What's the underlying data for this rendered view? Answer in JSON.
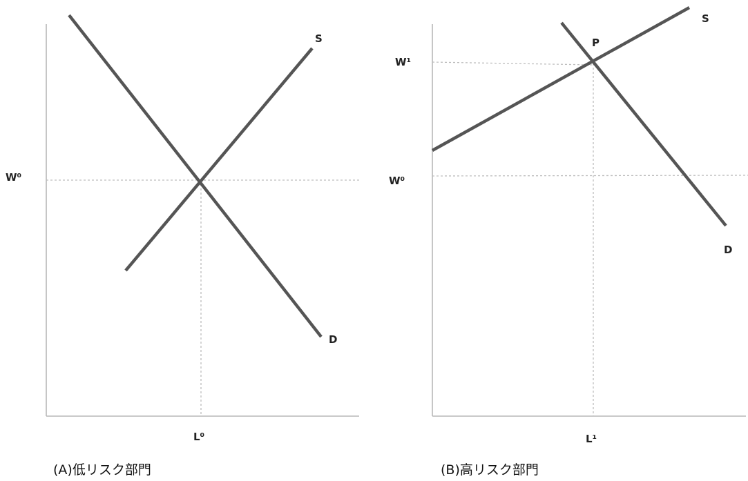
{
  "panel_a": {
    "caption": "(A)低リスク部門",
    "wage_label": "W⁰",
    "labor_label": "L⁰",
    "supply_label": "S",
    "demand_label": "D"
  },
  "panel_b": {
    "caption": "(B)高リスク部門",
    "wage_high_label": "W¹",
    "wage_base_label": "W⁰",
    "labor_label": "L¹",
    "point_label": "P",
    "supply_label": "S",
    "demand_label": "D"
  },
  "colors": {
    "curve": "#555555",
    "axis": "#b7b7b7",
    "guide": "#bdbdbd"
  }
}
